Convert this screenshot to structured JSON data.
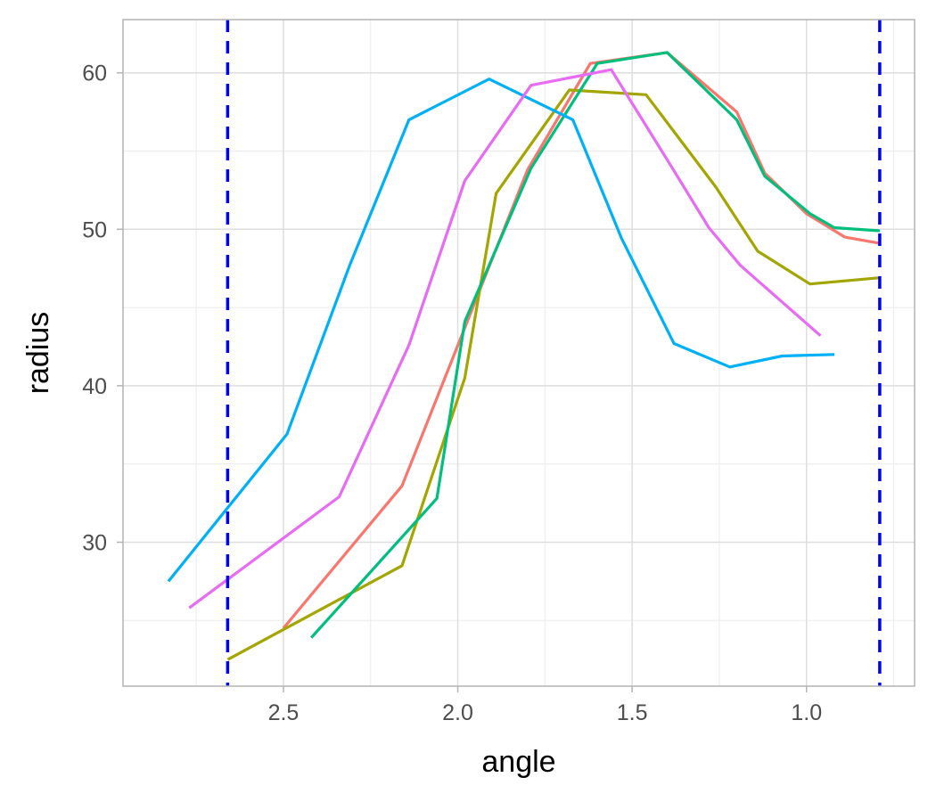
{
  "chart_data": {
    "type": "line",
    "title": "",
    "xlabel": "angle",
    "ylabel": "radius",
    "x_reversed": true,
    "xlim": [
      0.69,
      2.96
    ],
    "ylim": [
      20.8,
      63.4
    ],
    "x_ticks": [
      2.5,
      2.0,
      1.5,
      1.0
    ],
    "x_tick_labels": [
      "2.5",
      "2.0",
      "1.5",
      "1.0"
    ],
    "y_ticks": [
      30,
      40,
      50,
      60
    ],
    "y_tick_labels": [
      "30",
      "40",
      "50",
      "60"
    ],
    "grid": true,
    "legend": "none",
    "vlines": [
      {
        "x": 2.66,
        "color": "#0000FF",
        "style": "dashed"
      },
      {
        "x": 0.79,
        "color": "#0000FF",
        "style": "dashed"
      }
    ],
    "series": [
      {
        "color": "#F8766D",
        "x": [
          2.5,
          2.16,
          1.8,
          1.62,
          1.4,
          1.2,
          1.12,
          1.0,
          0.89,
          0.79
        ],
        "y": [
          24.5,
          33.6,
          53.8,
          60.6,
          61.3,
          57.5,
          53.6,
          51.0,
          49.5,
          49.1
        ]
      },
      {
        "color": "#A3A500",
        "x": [
          2.66,
          2.16,
          1.98,
          1.89,
          1.68,
          1.46,
          1.26,
          1.14,
          0.99,
          0.79
        ],
        "y": [
          22.5,
          28.5,
          40.5,
          52.3,
          58.9,
          58.6,
          52.7,
          48.6,
          46.5,
          46.9
        ]
      },
      {
        "color": "#00BF7D",
        "x": [
          2.42,
          2.06,
          1.98,
          1.79,
          1.6,
          1.4,
          1.2,
          1.12,
          0.99,
          0.92,
          0.79
        ],
        "y": [
          23.9,
          32.8,
          44.1,
          53.9,
          60.6,
          61.3,
          57.0,
          53.4,
          51.0,
          50.1,
          49.9
        ]
      },
      {
        "color": "#00B0F6",
        "x": [
          2.83,
          2.49,
          2.31,
          2.14,
          1.91,
          1.67,
          1.53,
          1.38,
          1.22,
          1.07,
          0.92
        ],
        "y": [
          27.5,
          36.9,
          47.7,
          57.0,
          59.6,
          57.0,
          49.4,
          42.7,
          41.2,
          41.9,
          42.0
        ]
      },
      {
        "color": "#E76BF3",
        "x": [
          2.77,
          2.34,
          2.14,
          1.98,
          1.79,
          1.56,
          1.39,
          1.28,
          1.19,
          0.96
        ],
        "y": [
          25.8,
          32.9,
          42.6,
          53.1,
          59.2,
          60.2,
          54.1,
          50.1,
          47.7,
          43.2
        ]
      }
    ]
  }
}
